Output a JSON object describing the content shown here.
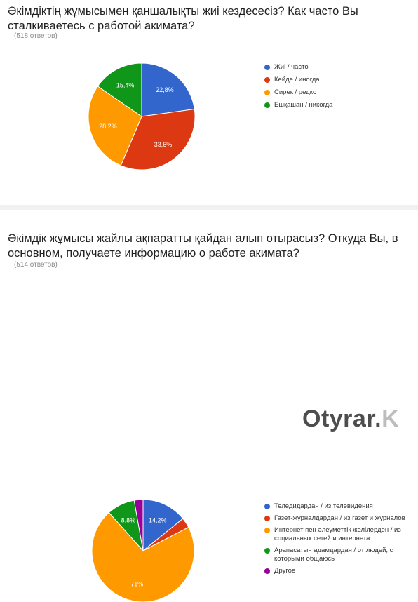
{
  "chart_data": [
    {
      "type": "pie",
      "title": "Әкімдіктің жұмысымен қаншалықты жиі кездесесіз? Как часто Вы сталкиваетесь с работой акимата?",
      "subtitle": "(518 ответов)",
      "labels": [
        "Жиі / часто",
        "Кейде / иногда",
        "Сирек / редко",
        "Ешқашан / никогда"
      ],
      "values": [
        22.8,
        33.6,
        28.2,
        15.4
      ],
      "data_labels": [
        "22,8%",
        "33,6%",
        "28,2%",
        "15,4%"
      ],
      "colors": [
        "#3366cc",
        "#dc3912",
        "#ff9900",
        "#109618"
      ],
      "legend_position": "right"
    },
    {
      "type": "pie",
      "title": "Әкімдік жұмысы жайлы ақпаратты қайдан алып отырасыз? Откуда Вы, в основном, получаете информацию о работе акимата?",
      "subtitle": "(514 ответов)",
      "labels": [
        "Теледидардан / из телевидения",
        "Газет-журналдардан / из газет и журналов",
        "Интернет пен әлеуметтік желілерден / из социальных сетей и интернета",
        "Арапасатын адамдардан / от людей, с которыми общаюсь",
        "Другое"
      ],
      "values": [
        14.2,
        3.2,
        71.0,
        8.8,
        2.8
      ],
      "data_labels": [
        "14,2%",
        "",
        "71%",
        "8,8%",
        ""
      ],
      "colors": [
        "#3366cc",
        "#dc3912",
        "#ff9900",
        "#109618",
        "#990099"
      ],
      "legend_position": "right"
    }
  ],
  "watermark": {
    "main": "Otyrar.",
    "fade": "K"
  }
}
